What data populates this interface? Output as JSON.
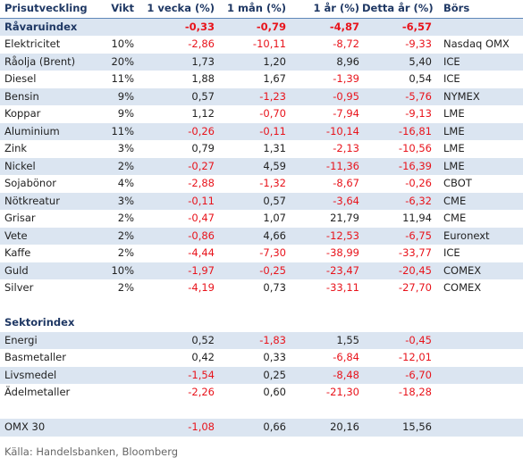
{
  "header": {
    "name": "Prisutveckling",
    "weight": "Vikt",
    "week": "1 vecka (%)",
    "month": "1 mån (%)",
    "year": "1 år (%)",
    "ytd": "Detta år (%)",
    "exchange": "Börs"
  },
  "commodity_index": {
    "name": "Råvaruindex",
    "week": "-0,33",
    "month": "-0,79",
    "year": "-4,87",
    "ytd": "-6,57"
  },
  "commodities": [
    {
      "name": "Elektricitet",
      "weight": "10%",
      "week": "-2,86",
      "month": "-10,11",
      "year": "-8,72",
      "ytd": "-9,33",
      "exchange": "Nasdaq OMX"
    },
    {
      "name": "Råolja (Brent)",
      "weight": "20%",
      "week": "1,73",
      "month": "1,20",
      "year": "8,96",
      "ytd": "5,40",
      "exchange": "ICE"
    },
    {
      "name": "Diesel",
      "weight": "11%",
      "week": "1,88",
      "month": "1,67",
      "year": "-1,39",
      "ytd": "0,54",
      "exchange": "ICE"
    },
    {
      "name": "Bensin",
      "weight": "9%",
      "week": "0,57",
      "month": "-1,23",
      "year": "-0,95",
      "ytd": "-5,76",
      "exchange": "NYMEX"
    },
    {
      "name": "Koppar",
      "weight": "9%",
      "week": "1,12",
      "month": "-0,70",
      "year": "-7,94",
      "ytd": "-9,13",
      "exchange": "LME"
    },
    {
      "name": "Aluminium",
      "weight": "11%",
      "week": "-0,26",
      "month": "-0,11",
      "year": "-10,14",
      "ytd": "-16,81",
      "exchange": "LME"
    },
    {
      "name": "Zink",
      "weight": "3%",
      "week": "0,79",
      "month": "1,31",
      "year": "-2,13",
      "ytd": "-10,56",
      "exchange": "LME"
    },
    {
      "name": "Nickel",
      "weight": "2%",
      "week": "-0,27",
      "month": "4,59",
      "year": "-11,36",
      "ytd": "-16,39",
      "exchange": "LME"
    },
    {
      "name": "Sojabönor",
      "weight": "4%",
      "week": "-2,88",
      "month": "-1,32",
      "year": "-8,67",
      "ytd": "-0,26",
      "exchange": "CBOT"
    },
    {
      "name": "Nötkreatur",
      "weight": "3%",
      "week": "-0,11",
      "month": "0,57",
      "year": "-3,64",
      "ytd": "-6,32",
      "exchange": "CME"
    },
    {
      "name": "Grisar",
      "weight": "2%",
      "week": "-0,47",
      "month": "1,07",
      "year": "21,79",
      "ytd": "11,94",
      "exchange": "CME"
    },
    {
      "name": "Vete",
      "weight": "2%",
      "week": "-0,86",
      "month": "4,66",
      "year": "-12,53",
      "ytd": "-6,75",
      "exchange": "Euronext"
    },
    {
      "name": "Kaffe",
      "weight": "2%",
      "week": "-4,44",
      "month": "-7,30",
      "year": "-38,99",
      "ytd": "-33,77",
      "exchange": "ICE"
    },
    {
      "name": "Guld",
      "weight": "10%",
      "week": "-1,97",
      "month": "-0,25",
      "year": "-23,47",
      "ytd": "-20,45",
      "exchange": "COMEX"
    },
    {
      "name": "Silver",
      "weight": "2%",
      "week": "-4,19",
      "month": "0,73",
      "year": "-33,11",
      "ytd": "-27,70",
      "exchange": "COMEX"
    }
  ],
  "sector_title": "Sektorindex",
  "sectors": [
    {
      "name": "Energi",
      "week": "0,52",
      "month": "-1,83",
      "year": "1,55",
      "ytd": "-0,45"
    },
    {
      "name": "Basmetaller",
      "week": "0,42",
      "month": "0,33",
      "year": "-6,84",
      "ytd": "-12,01"
    },
    {
      "name": "Livsmedel",
      "week": "-1,54",
      "month": "0,25",
      "year": "-8,48",
      "ytd": "-6,70"
    },
    {
      "name": "Ädelmetaller",
      "week": "-2,26",
      "month": "0,60",
      "year": "-21,30",
      "ytd": "-18,28"
    }
  ],
  "omx": {
    "name": "OMX 30",
    "week": "-1,08",
    "month": "0,66",
    "year": "20,16",
    "ytd": "15,56"
  },
  "source": "Källa: Handelsbanken, Bloomberg",
  "colors": {
    "negative": "#e8141c",
    "row_shade": "#dbe5f1",
    "header_rule": "#5f87b9",
    "header_text": "#1f3864"
  }
}
